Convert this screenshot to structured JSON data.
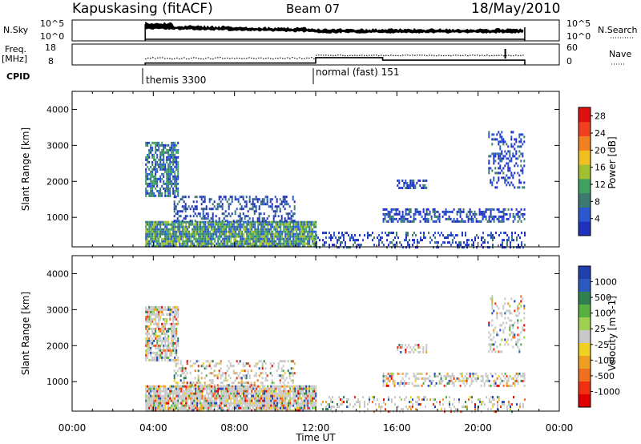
{
  "header": {
    "station": "Kapuskasing (fitACF)",
    "beam": "Beam 07",
    "date": "18/May/2010"
  },
  "top_panels": {
    "nsky_label": "N.Sky",
    "nsky_ticks": [
      "10^5",
      "10^0"
    ],
    "nsearch_label": "N.Search",
    "nsearch_ticks": [
      "10^5",
      "10^0"
    ],
    "freq_label_1": "Freq.",
    "freq_label_2": "[MHz]",
    "freq_ticks": [
      "18",
      "8"
    ],
    "nave_label": "Nave",
    "nave_ticks": [
      "60",
      "0"
    ],
    "cpid_label": "CPID",
    "cpid_segments": [
      {
        "start_hour": 3.6,
        "label": "themis 3300"
      },
      {
        "start_hour": 12.0,
        "label": "normal (fast) 151"
      }
    ],
    "freq_steps": [
      {
        "start": 3.6,
        "end": 12.0,
        "level": 8.9
      },
      {
        "start": 12.0,
        "end": 15.3,
        "level": 11.5
      },
      {
        "start": 15.3,
        "end": 22.3,
        "level": 10.3
      }
    ]
  },
  "colors": {
    "power": [
      "#2030c0",
      "#2a58d0",
      "#3a7a70",
      "#40a060",
      "#a0c030",
      "#f0c020",
      "#f08020",
      "#f04020",
      "#e01010"
    ],
    "velocity": [
      "#2040b0",
      "#2a5ac0",
      "#308050",
      "#58b040",
      "#a0d050",
      "#c8c8c8",
      "#f0d020",
      "#f0a020",
      "#f07020",
      "#f03010",
      "#e00000"
    ]
  },
  "chart_data": [
    {
      "type": "heatmap",
      "title": "Power",
      "xlabel": "",
      "ylabel": "Slant Range [km]",
      "xlim": [
        0,
        24
      ],
      "ylim": [
        180,
        4500
      ],
      "x_ticks": [],
      "y_ticks": [
        "4000",
        "3000",
        "2000",
        "1000"
      ],
      "y_tick_values": [
        4000,
        3000,
        2000,
        1000
      ],
      "colorbar": {
        "label": "Power [dB]",
        "ticks": [
          "28",
          "24",
          "20",
          "16",
          "12",
          "8",
          "4"
        ],
        "tick_values": [
          28,
          24,
          20,
          16,
          12,
          8,
          4
        ],
        "range": [
          0,
          30
        ]
      },
      "regions": [
        {
          "start_hour": 3.6,
          "end_hour": 12.0,
          "range_min": 180,
          "range_max": 900,
          "value": 12,
          "density": 0.9
        },
        {
          "start_hour": 3.6,
          "end_hour": 5.2,
          "range_min": 1600,
          "range_max": 3100,
          "value": 6,
          "density": 0.7
        },
        {
          "start_hour": 5.0,
          "end_hour": 11.0,
          "range_min": 900,
          "range_max": 1600,
          "value": 5,
          "density": 0.35
        },
        {
          "start_hour": 12.0,
          "end_hour": 22.3,
          "range_min": 180,
          "range_max": 600,
          "value": 4,
          "density": 0.3
        },
        {
          "start_hour": 15.3,
          "end_hour": 22.3,
          "range_min": 900,
          "range_max": 1250,
          "value": 4,
          "density": 0.5
        },
        {
          "start_hour": 16.0,
          "end_hour": 17.5,
          "range_min": 1800,
          "range_max": 2050,
          "value": 4,
          "density": 0.5
        },
        {
          "start_hour": 20.5,
          "end_hour": 22.3,
          "range_min": 1800,
          "range_max": 3400,
          "value": 4,
          "density": 0.3
        }
      ]
    },
    {
      "type": "heatmap",
      "title": "Velocity",
      "xlabel": "Time UT",
      "ylabel": "Slant Range [km]",
      "xlim": [
        0,
        24
      ],
      "ylim": [
        180,
        4500
      ],
      "x_ticks": [
        "00:00",
        "04:00",
        "08:00",
        "12:00",
        "16:00",
        "20:00",
        "00:00"
      ],
      "x_tick_values": [
        0,
        4,
        8,
        12,
        16,
        20,
        24
      ],
      "y_ticks": [
        "4000",
        "3000",
        "2000",
        "1000"
      ],
      "y_tick_values": [
        4000,
        3000,
        2000,
        1000
      ],
      "colorbar": {
        "label": "Velocity [m s-1]",
        "ticks": [
          "1000",
          "500",
          "100",
          "25",
          "-25",
          "-100",
          "-500",
          "-1000"
        ],
        "tick_values": [
          1000,
          500,
          100,
          25,
          -25,
          -100,
          -500,
          -1000
        ]
      },
      "regions": [
        {
          "start_hour": 3.6,
          "end_hour": 12.0,
          "range_min": 180,
          "range_max": 900,
          "value": 0,
          "density": 0.9
        },
        {
          "start_hour": 3.6,
          "end_hour": 5.2,
          "range_min": 1600,
          "range_max": 3100,
          "value": 0,
          "density": 0.7
        },
        {
          "start_hour": 5.0,
          "end_hour": 11.0,
          "range_min": 900,
          "range_max": 1600,
          "value": 100,
          "density": 0.3
        },
        {
          "start_hour": 12.0,
          "end_hour": 22.3,
          "range_min": 180,
          "range_max": 600,
          "value": 100,
          "density": 0.25
        },
        {
          "start_hour": 15.3,
          "end_hour": 22.3,
          "range_min": 900,
          "range_max": 1250,
          "value": 0,
          "density": 0.4
        },
        {
          "start_hour": 16.0,
          "end_hour": 17.5,
          "range_min": 1800,
          "range_max": 2050,
          "value": 0,
          "density": 0.4
        },
        {
          "start_hour": 20.5,
          "end_hour": 22.3,
          "range_min": 1800,
          "range_max": 3400,
          "value": 0,
          "density": 0.25
        }
      ]
    }
  ]
}
